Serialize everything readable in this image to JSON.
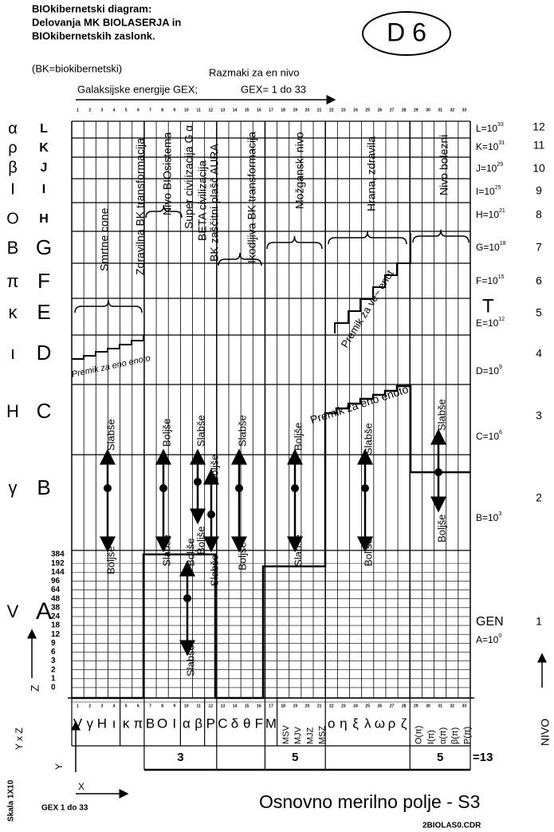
{
  "header": {
    "title_lines": [
      "BIOkibernetski diagram:",
      "Delovanja MK BIOLASERJA in",
      "BIOkibernetskih zaslonk."
    ],
    "note": "(BK=biokibernetski)",
    "badge": "D 6"
  },
  "top_axis": {
    "caption": "Razmaki za en nivo",
    "label": "Galaksijske energije GEX;",
    "range": "GEX= 1 do 33",
    "columns": [
      1,
      2,
      3,
      4,
      5,
      6,
      7,
      8,
      9,
      10,
      11,
      12,
      13,
      14,
      15,
      16,
      17,
      18,
      19,
      20,
      21,
      22,
      23,
      24,
      25,
      26,
      27,
      28,
      29,
      30,
      31,
      32,
      33
    ]
  },
  "levels": [
    {
      "greek": "α",
      "letter": "L",
      "power": "L=10",
      "exponent": "33",
      "nivo": 12
    },
    {
      "greek": "ρ",
      "letter": "K",
      "power": "K=10",
      "exponent": "31",
      "nivo": 11
    },
    {
      "greek": "β",
      "letter": "J",
      "power": "J=10",
      "exponent": "29",
      "nivo": 10
    },
    {
      "greek": "I",
      "letter": "I",
      "power": "I=10",
      "exponent": "25",
      "nivo": 9
    },
    {
      "greek": "O",
      "letter": "H",
      "power": "H=10",
      "exponent": "21",
      "nivo": 8
    },
    {
      "greek": "B",
      "letter": "G",
      "power": "G=10",
      "exponent": "18",
      "nivo": 7
    },
    {
      "greek": "π",
      "letter": "F",
      "power": "F=10",
      "exponent": "15",
      "nivo": 6
    },
    {
      "greek": "κ",
      "letter": "E",
      "power": "E=10",
      "exponent": "12",
      "nivo": 5,
      "mark": "T"
    },
    {
      "greek": "ι",
      "letter": "D",
      "power": "D=10",
      "exponent": "9",
      "nivo": 4
    },
    {
      "greek": "H",
      "letter": "C",
      "power": "C=10",
      "exponent": "6",
      "nivo": 3
    },
    {
      "greek": "γ",
      "letter": "B",
      "power": "B=10",
      "exponent": "3",
      "nivo": 2
    },
    {
      "greek": "V",
      "letter": "A",
      "power": "A=10",
      "exponent": "0",
      "nivo": 1,
      "mark": "GEN"
    }
  ],
  "a_scale": [
    384,
    192,
    144,
    96,
    64,
    48,
    38,
    24,
    18,
    12,
    9,
    6,
    3,
    2,
    1,
    0
  ],
  "annotations": [
    "Smrtne cone",
    "Zdravilna BK transformacija",
    "Nivo BIOsistema",
    "Super civilizacija G α",
    "BETA civilizacija",
    "BK zaščitni plašč AURA",
    "Ikodljiva BK transformacija",
    "Možganski nivo",
    "Hrana, zdravila",
    "Nivo bolezni"
  ],
  "shifts": {
    "many": "Premik za ve~ enot",
    "one": "Premik za eno enoto"
  },
  "directions": {
    "worse": "Slabše",
    "better": "Boljše"
  },
  "bottom_row": [
    "V",
    "γ",
    "H",
    "ι",
    "κ",
    "π",
    "B",
    "O",
    "I",
    "α",
    "β",
    "P",
    "C",
    "δ",
    "θ",
    "F",
    "M",
    "MSV",
    "MJV",
    "MJZ",
    "MSZ",
    "ο",
    "η",
    "ξ",
    "λ",
    "ω",
    "ρ",
    "ζ",
    "O(π)",
    "I(π)",
    "α(π)",
    "β(π)",
    "P(π)"
  ],
  "sums": {
    "groups": [
      "3",
      "5",
      "5"
    ],
    "total": "=13"
  },
  "footer": {
    "title": "Osnovno merilno polje - S3",
    "file": "2BIOLAS0.CDR",
    "scale": "Skala 1X10",
    "axes": "Y x Z",
    "x": "X",
    "y": "Y",
    "z": "Z",
    "gex": "GEX 1 do 33",
    "nivo": "NIVO"
  }
}
